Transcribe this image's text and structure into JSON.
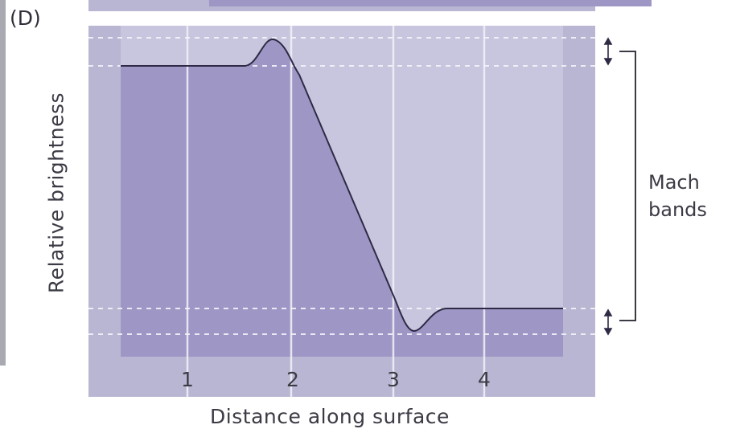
{
  "panel_label": "(D)",
  "y_axis_label": "Relative brightness",
  "x_axis_label": "Distance along surface",
  "x_ticks": [
    "1",
    "2",
    "3",
    "4"
  ],
  "annotation": {
    "line1": "Mach",
    "line2": "bands"
  },
  "colors": {
    "panel_background": "#b8b6d2",
    "graph_background": "#c8c6de",
    "fill": "#9e97c6",
    "curve": "#2e2a45",
    "gridline": "#f2f2f8"
  }
}
